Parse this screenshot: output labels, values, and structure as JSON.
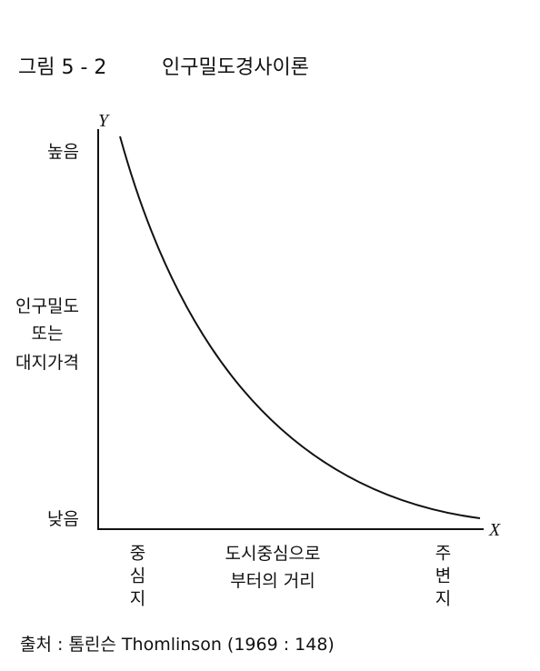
{
  "figure": {
    "number": "그림 5 - 2",
    "title": "인구밀도경사이론"
  },
  "y_axis": {
    "letter": "Y",
    "high": "높음",
    "low": "낮음",
    "label_lines": [
      "인구밀도",
      "또는",
      "대지가격"
    ]
  },
  "x_axis": {
    "letter": "X",
    "center": "중심지",
    "label_lines": [
      "도시중심으로",
      "부터의 거리"
    ],
    "periphery": "주변지"
  },
  "source": "출처 : 톰린슨 Thomlinson (1969 : 148)"
}
